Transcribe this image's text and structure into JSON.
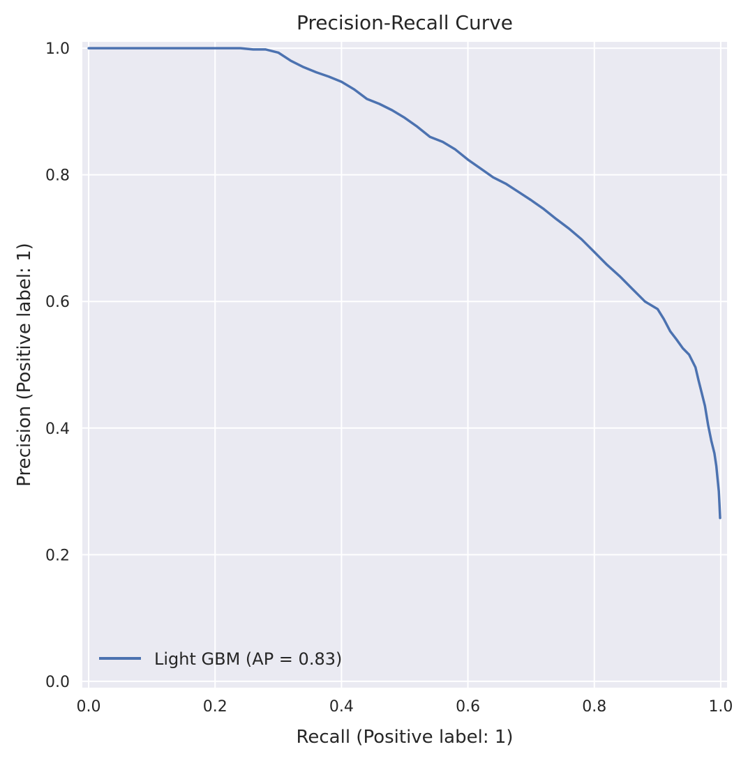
{
  "chart_data": {
    "type": "line",
    "title": "Precision-Recall Curve",
    "xlabel": "Recall (Positive label: 1)",
    "ylabel": "Precision (Positive label: 1)",
    "xlim": [
      -0.01,
      1.01
    ],
    "ylim": [
      -0.01,
      1.01
    ],
    "xticks": [
      0.0,
      0.2,
      0.4,
      0.6,
      0.8,
      1.0
    ],
    "yticks": [
      0.0,
      0.2,
      0.4,
      0.6,
      0.8,
      1.0
    ],
    "xtick_labels": [
      "0.0",
      "0.2",
      "0.4",
      "0.6",
      "0.8",
      "1.0"
    ],
    "ytick_labels": [
      "0.0",
      "0.2",
      "0.4",
      "0.6",
      "0.8",
      "1.0"
    ],
    "grid": true,
    "legend_position": "lower-left",
    "series": [
      {
        "name": "Light GBM (AP = 0.83)",
        "color": "#4c72b0",
        "x": [
          0.0,
          0.05,
          0.1,
          0.15,
          0.2,
          0.24,
          0.26,
          0.28,
          0.3,
          0.32,
          0.34,
          0.36,
          0.38,
          0.4,
          0.42,
          0.44,
          0.46,
          0.48,
          0.5,
          0.52,
          0.54,
          0.56,
          0.58,
          0.6,
          0.62,
          0.64,
          0.66,
          0.68,
          0.7,
          0.72,
          0.74,
          0.76,
          0.78,
          0.8,
          0.82,
          0.84,
          0.86,
          0.88,
          0.9,
          0.91,
          0.92,
          0.93,
          0.94,
          0.95,
          0.96,
          0.965,
          0.97,
          0.975,
          0.98,
          0.985,
          0.99,
          0.993,
          0.995,
          0.997,
          0.998,
          0.999
        ],
        "y": [
          1.0,
          1.0,
          1.0,
          1.0,
          1.0,
          1.0,
          0.998,
          0.998,
          0.993,
          0.98,
          0.97,
          0.962,
          0.955,
          0.947,
          0.935,
          0.92,
          0.912,
          0.902,
          0.89,
          0.876,
          0.86,
          0.852,
          0.84,
          0.824,
          0.81,
          0.796,
          0.786,
          0.773,
          0.76,
          0.746,
          0.73,
          0.715,
          0.698,
          0.678,
          0.658,
          0.64,
          0.62,
          0.6,
          0.588,
          0.572,
          0.553,
          0.54,
          0.526,
          0.516,
          0.496,
          0.475,
          0.455,
          0.435,
          0.405,
          0.38,
          0.36,
          0.34,
          0.32,
          0.3,
          0.28,
          0.258
        ]
      }
    ]
  }
}
